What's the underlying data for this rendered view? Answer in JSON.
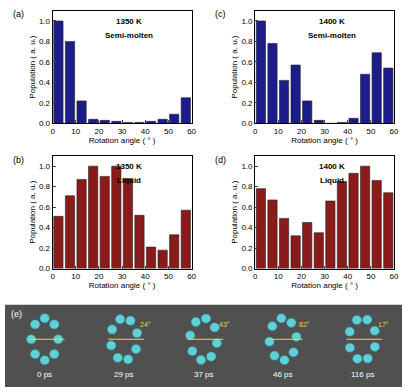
{
  "chart_data": [
    {
      "type": "bar",
      "title": "(a)",
      "annotations": [
        "1350 K",
        "Semi-molten"
      ],
      "x_label": "Rotation angle ( ° )",
      "y_label": "Population ( a. u.)",
      "x": [
        2.5,
        7.5,
        12.5,
        17.5,
        22.5,
        27.5,
        32.5,
        37.5,
        42.5,
        47.5,
        52.5,
        57.5
      ],
      "values": [
        1.0,
        0.8,
        0.22,
        0.04,
        0.03,
        0.02,
        0.01,
        0.01,
        0.02,
        0.04,
        0.09,
        0.25
      ],
      "color": "#1c1c8a",
      "xlim": [
        0,
        60
      ],
      "xticks": [
        0,
        10,
        20,
        30,
        40,
        50,
        60
      ],
      "ylim": [
        0,
        1.1
      ],
      "yticks": [
        {
          "value": 0,
          "label": "0.0"
        },
        0.2,
        0.4,
        0.6,
        0.8,
        {
          "value": 1,
          "label": "1.0"
        }
      ],
      "grid": false
    },
    {
      "type": "bar",
      "title": "(b)",
      "annotations": [
        "1350 K",
        "Liquid"
      ],
      "x_label": "Rotation angle ( ° )",
      "y_label": "Population ( a. u.)",
      "x": [
        2.5,
        7.5,
        12.5,
        17.5,
        22.5,
        27.5,
        32.5,
        37.5,
        42.5,
        47.5,
        52.5,
        57.5
      ],
      "values": [
        0.51,
        0.71,
        0.87,
        1.0,
        0.9,
        1.0,
        0.88,
        0.52,
        0.21,
        0.18,
        0.33,
        0.57
      ],
      "color": "#8b1a1a",
      "xlim": [
        0,
        60
      ],
      "xticks": [
        0,
        10,
        20,
        30,
        40,
        50,
        60
      ],
      "ylim": [
        0,
        1.1
      ],
      "yticks": [
        {
          "value": 0,
          "label": "0.0"
        },
        0.2,
        0.4,
        0.6,
        0.8,
        {
          "value": 1,
          "label": "1.0"
        }
      ],
      "grid": false
    },
    {
      "type": "bar",
      "title": "(c)",
      "annotations": [
        "1400 K",
        "Semi-molten"
      ],
      "x_label": "Rotation angle ( ° )",
      "y_label": "Population ( a. u.)",
      "x": [
        2.5,
        7.5,
        12.5,
        17.5,
        22.5,
        27.5,
        32.5,
        37.5,
        42.5,
        47.5,
        52.5,
        57.5
      ],
      "values": [
        1.0,
        0.78,
        0.42,
        0.57,
        0.22,
        0.03,
        0.0,
        0.01,
        0.05,
        0.48,
        0.69,
        0.54
      ],
      "color": "#1c1c8a",
      "xlim": [
        0,
        60
      ],
      "xticks": [
        0,
        10,
        20,
        30,
        40,
        50,
        60
      ],
      "ylim": [
        0,
        1.1
      ],
      "yticks": [
        {
          "value": 0,
          "label": "0.0"
        },
        0.2,
        0.4,
        0.6,
        0.8,
        {
          "value": 1,
          "label": "1.0"
        }
      ],
      "grid": false
    },
    {
      "type": "bar",
      "title": "(d)",
      "annotations": [
        "1400 K",
        "Liquid"
      ],
      "x_label": "Rotation angle ( ° )",
      "y_label": "Population ( a. u.)",
      "x": [
        2.5,
        7.5,
        12.5,
        17.5,
        22.5,
        27.5,
        32.5,
        37.5,
        42.5,
        47.5,
        52.5,
        57.5
      ],
      "values": [
        0.78,
        0.67,
        0.49,
        0.32,
        0.45,
        0.35,
        0.66,
        0.85,
        0.93,
        1.0,
        0.86,
        0.74
      ],
      "color": "#8b1a1a",
      "xlim": [
        0,
        60
      ],
      "xticks": [
        0,
        10,
        20,
        30,
        40,
        50,
        60
      ],
      "ylim": [
        0,
        1.1
      ],
      "yticks": [
        {
          "value": 0,
          "label": "0.0"
        },
        0.2,
        0.4,
        0.6,
        0.8,
        {
          "value": 1,
          "label": "1.0"
        }
      ],
      "grid": false
    }
  ],
  "snapshots": {
    "title": "(e)",
    "frames": [
      {
        "time": "0 ps"
      },
      {
        "time": "29 ps",
        "angle": "24°"
      },
      {
        "time": "37 ps",
        "angle": "43°"
      },
      {
        "time": "46 ps",
        "angle": "82°"
      },
      {
        "time": "116 ps",
        "angle": "17°"
      }
    ]
  }
}
